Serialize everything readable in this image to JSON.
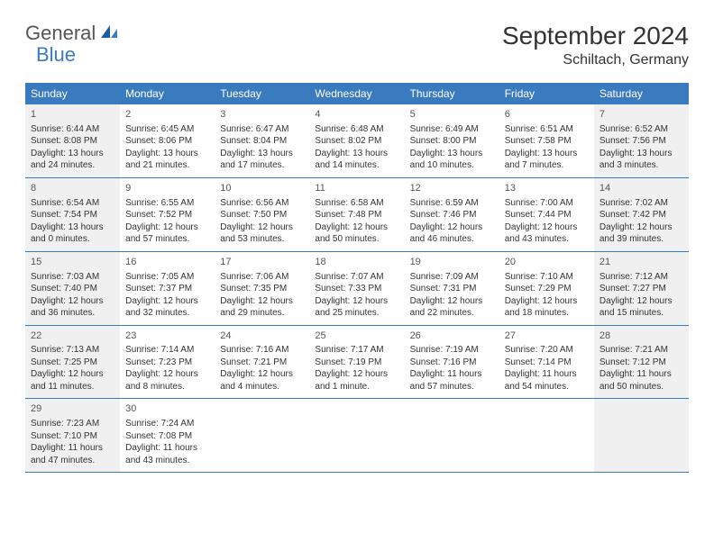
{
  "logo": {
    "text1": "General",
    "text2": "Blue"
  },
  "title": "September 2024",
  "location": "Schiltach, Germany",
  "colors": {
    "header_bg": "#3a7bbf",
    "header_text": "#ffffff",
    "shade_bg": "#f0f0f0",
    "border": "#3a7bbf",
    "body_text": "#333333",
    "logo_gray": "#555555",
    "logo_blue": "#3a7bbf"
  },
  "day_names": [
    "Sunday",
    "Monday",
    "Tuesday",
    "Wednesday",
    "Thursday",
    "Friday",
    "Saturday"
  ],
  "weeks": [
    [
      {
        "num": "1",
        "shaded": true,
        "sunrise": "Sunrise: 6:44 AM",
        "sunset": "Sunset: 8:08 PM",
        "daylight1": "Daylight: 13 hours",
        "daylight2": "and 24 minutes."
      },
      {
        "num": "2",
        "sunrise": "Sunrise: 6:45 AM",
        "sunset": "Sunset: 8:06 PM",
        "daylight1": "Daylight: 13 hours",
        "daylight2": "and 21 minutes."
      },
      {
        "num": "3",
        "sunrise": "Sunrise: 6:47 AM",
        "sunset": "Sunset: 8:04 PM",
        "daylight1": "Daylight: 13 hours",
        "daylight2": "and 17 minutes."
      },
      {
        "num": "4",
        "sunrise": "Sunrise: 6:48 AM",
        "sunset": "Sunset: 8:02 PM",
        "daylight1": "Daylight: 13 hours",
        "daylight2": "and 14 minutes."
      },
      {
        "num": "5",
        "sunrise": "Sunrise: 6:49 AM",
        "sunset": "Sunset: 8:00 PM",
        "daylight1": "Daylight: 13 hours",
        "daylight2": "and 10 minutes."
      },
      {
        "num": "6",
        "sunrise": "Sunrise: 6:51 AM",
        "sunset": "Sunset: 7:58 PM",
        "daylight1": "Daylight: 13 hours",
        "daylight2": "and 7 minutes."
      },
      {
        "num": "7",
        "shaded": true,
        "sunrise": "Sunrise: 6:52 AM",
        "sunset": "Sunset: 7:56 PM",
        "daylight1": "Daylight: 13 hours",
        "daylight2": "and 3 minutes."
      }
    ],
    [
      {
        "num": "8",
        "shaded": true,
        "sunrise": "Sunrise: 6:54 AM",
        "sunset": "Sunset: 7:54 PM",
        "daylight1": "Daylight: 13 hours",
        "daylight2": "and 0 minutes."
      },
      {
        "num": "9",
        "sunrise": "Sunrise: 6:55 AM",
        "sunset": "Sunset: 7:52 PM",
        "daylight1": "Daylight: 12 hours",
        "daylight2": "and 57 minutes."
      },
      {
        "num": "10",
        "sunrise": "Sunrise: 6:56 AM",
        "sunset": "Sunset: 7:50 PM",
        "daylight1": "Daylight: 12 hours",
        "daylight2": "and 53 minutes."
      },
      {
        "num": "11",
        "sunrise": "Sunrise: 6:58 AM",
        "sunset": "Sunset: 7:48 PM",
        "daylight1": "Daylight: 12 hours",
        "daylight2": "and 50 minutes."
      },
      {
        "num": "12",
        "sunrise": "Sunrise: 6:59 AM",
        "sunset": "Sunset: 7:46 PM",
        "daylight1": "Daylight: 12 hours",
        "daylight2": "and 46 minutes."
      },
      {
        "num": "13",
        "sunrise": "Sunrise: 7:00 AM",
        "sunset": "Sunset: 7:44 PM",
        "daylight1": "Daylight: 12 hours",
        "daylight2": "and 43 minutes."
      },
      {
        "num": "14",
        "shaded": true,
        "sunrise": "Sunrise: 7:02 AM",
        "sunset": "Sunset: 7:42 PM",
        "daylight1": "Daylight: 12 hours",
        "daylight2": "and 39 minutes."
      }
    ],
    [
      {
        "num": "15",
        "shaded": true,
        "sunrise": "Sunrise: 7:03 AM",
        "sunset": "Sunset: 7:40 PM",
        "daylight1": "Daylight: 12 hours",
        "daylight2": "and 36 minutes."
      },
      {
        "num": "16",
        "sunrise": "Sunrise: 7:05 AM",
        "sunset": "Sunset: 7:37 PM",
        "daylight1": "Daylight: 12 hours",
        "daylight2": "and 32 minutes."
      },
      {
        "num": "17",
        "sunrise": "Sunrise: 7:06 AM",
        "sunset": "Sunset: 7:35 PM",
        "daylight1": "Daylight: 12 hours",
        "daylight2": "and 29 minutes."
      },
      {
        "num": "18",
        "sunrise": "Sunrise: 7:07 AM",
        "sunset": "Sunset: 7:33 PM",
        "daylight1": "Daylight: 12 hours",
        "daylight2": "and 25 minutes."
      },
      {
        "num": "19",
        "sunrise": "Sunrise: 7:09 AM",
        "sunset": "Sunset: 7:31 PM",
        "daylight1": "Daylight: 12 hours",
        "daylight2": "and 22 minutes."
      },
      {
        "num": "20",
        "sunrise": "Sunrise: 7:10 AM",
        "sunset": "Sunset: 7:29 PM",
        "daylight1": "Daylight: 12 hours",
        "daylight2": "and 18 minutes."
      },
      {
        "num": "21",
        "shaded": true,
        "sunrise": "Sunrise: 7:12 AM",
        "sunset": "Sunset: 7:27 PM",
        "daylight1": "Daylight: 12 hours",
        "daylight2": "and 15 minutes."
      }
    ],
    [
      {
        "num": "22",
        "shaded": true,
        "sunrise": "Sunrise: 7:13 AM",
        "sunset": "Sunset: 7:25 PM",
        "daylight1": "Daylight: 12 hours",
        "daylight2": "and 11 minutes."
      },
      {
        "num": "23",
        "sunrise": "Sunrise: 7:14 AM",
        "sunset": "Sunset: 7:23 PM",
        "daylight1": "Daylight: 12 hours",
        "daylight2": "and 8 minutes."
      },
      {
        "num": "24",
        "sunrise": "Sunrise: 7:16 AM",
        "sunset": "Sunset: 7:21 PM",
        "daylight1": "Daylight: 12 hours",
        "daylight2": "and 4 minutes."
      },
      {
        "num": "25",
        "sunrise": "Sunrise: 7:17 AM",
        "sunset": "Sunset: 7:19 PM",
        "daylight1": "Daylight: 12 hours",
        "daylight2": "and 1 minute."
      },
      {
        "num": "26",
        "sunrise": "Sunrise: 7:19 AM",
        "sunset": "Sunset: 7:16 PM",
        "daylight1": "Daylight: 11 hours",
        "daylight2": "and 57 minutes."
      },
      {
        "num": "27",
        "sunrise": "Sunrise: 7:20 AM",
        "sunset": "Sunset: 7:14 PM",
        "daylight1": "Daylight: 11 hours",
        "daylight2": "and 54 minutes."
      },
      {
        "num": "28",
        "shaded": true,
        "sunrise": "Sunrise: 7:21 AM",
        "sunset": "Sunset: 7:12 PM",
        "daylight1": "Daylight: 11 hours",
        "daylight2": "and 50 minutes."
      }
    ],
    [
      {
        "num": "29",
        "shaded": true,
        "sunrise": "Sunrise: 7:23 AM",
        "sunset": "Sunset: 7:10 PM",
        "daylight1": "Daylight: 11 hours",
        "daylight2": "and 47 minutes."
      },
      {
        "num": "30",
        "sunrise": "Sunrise: 7:24 AM",
        "sunset": "Sunset: 7:08 PM",
        "daylight1": "Daylight: 11 hours",
        "daylight2": "and 43 minutes."
      },
      {
        "empty": true
      },
      {
        "empty": true
      },
      {
        "empty": true
      },
      {
        "empty": true
      },
      {
        "empty": true,
        "shaded": true
      }
    ]
  ]
}
